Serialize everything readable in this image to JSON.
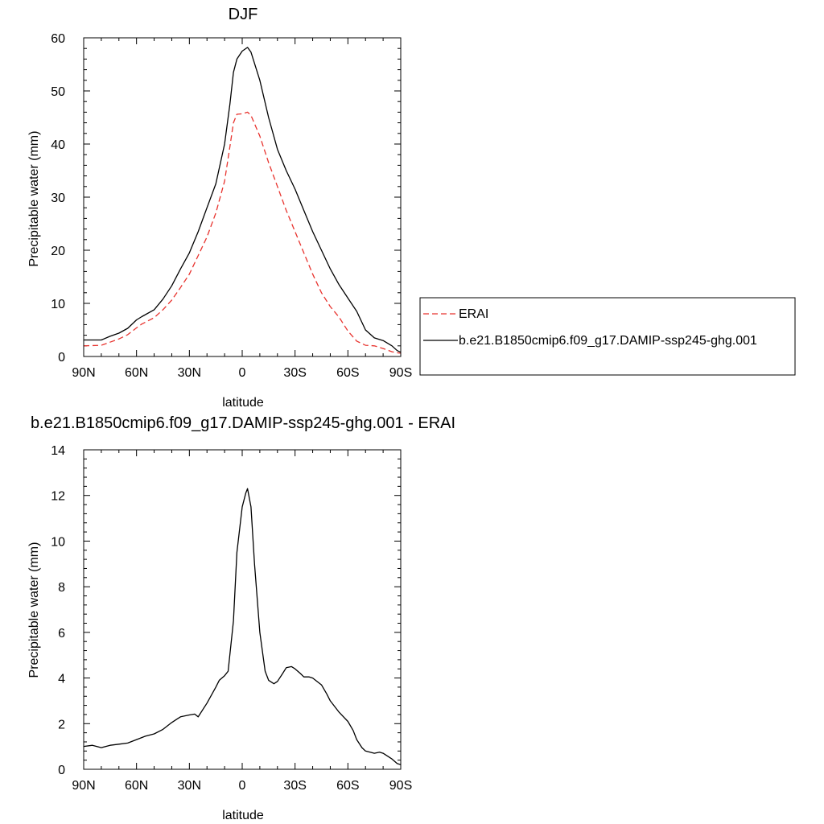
{
  "chart_data": [
    {
      "type": "line",
      "title": "DJF",
      "xlabel": "latitude",
      "ylabel": "Precipitable water (mm)",
      "xlim": [
        -90,
        90
      ],
      "ylim": [
        0,
        60
      ],
      "x_ticks": [
        -90,
        -60,
        -30,
        0,
        30,
        60,
        90
      ],
      "x_tick_labels": [
        "90N",
        "60N",
        "30N",
        "0",
        "30S",
        "60S",
        "90S"
      ],
      "y_ticks": [
        0,
        10,
        20,
        30,
        40,
        50,
        60
      ],
      "y_tick_labels": [
        "0",
        "10",
        "20",
        "30",
        "40",
        "50",
        "60"
      ],
      "grid": false,
      "legend_position": "right",
      "series": [
        {
          "name": "ERAI",
          "color": "#e8332e",
          "dash": "dashed",
          "x": [
            -90,
            -80,
            -75,
            -70,
            -65,
            -60,
            -57,
            -50,
            -45,
            -40,
            -35,
            -30,
            -25,
            -20,
            -15,
            -10,
            -7,
            -5,
            -3,
            0,
            3,
            5,
            10,
            15,
            20,
            25,
            30,
            35,
            40,
            45,
            50,
            55,
            60,
            65,
            70,
            75,
            80,
            85,
            88,
            90
          ],
          "y": [
            2.0,
            2.1,
            2.7,
            3.3,
            4.1,
            5.4,
            6.1,
            7.3,
            8.8,
            10.6,
            13.0,
            15.5,
            19.0,
            22.5,
            27.0,
            33.0,
            39.5,
            44.0,
            45.6,
            45.7,
            46.0,
            45.4,
            41.5,
            36.5,
            32.0,
            27.5,
            23.5,
            19.5,
            15.5,
            12.0,
            9.4,
            7.4,
            4.8,
            2.9,
            2.1,
            2.0,
            1.5,
            0.9,
            0.7,
            0.6
          ]
        },
        {
          "name": "b.e21.B1850cmip6.f09_g17.DAMIP-ssp245-ghg.001",
          "color": "#000000",
          "dash": "solid",
          "x": [
            -90,
            -85,
            -80,
            -75,
            -70,
            -65,
            -60,
            -57,
            -50,
            -45,
            -40,
            -35,
            -30,
            -25,
            -20,
            -15,
            -10,
            -7,
            -5,
            -3,
            0,
            3,
            5,
            10,
            15,
            20,
            25,
            30,
            35,
            40,
            45,
            50,
            55,
            60,
            65,
            70,
            75,
            80,
            85,
            88,
            90
          ],
          "y": [
            3.1,
            3.1,
            3.1,
            3.8,
            4.4,
            5.3,
            6.9,
            7.5,
            8.8,
            10.8,
            13.3,
            16.5,
            19.5,
            23.5,
            28.0,
            32.5,
            40.0,
            47.5,
            53.5,
            56.0,
            57.5,
            58.2,
            57.3,
            52.0,
            45.0,
            39.0,
            35.0,
            31.5,
            27.5,
            23.5,
            20.0,
            16.5,
            13.5,
            11.0,
            8.5,
            5.0,
            3.5,
            3.0,
            2.0,
            1.1,
            0.8
          ]
        }
      ]
    },
    {
      "type": "line",
      "title": "b.e21.B1850cmip6.f09_g17.DAMIP-ssp245-ghg.001 - ERAI",
      "xlabel": "latitude",
      "ylabel": "Precipitable water (mm)",
      "xlim": [
        -90,
        90
      ],
      "ylim": [
        0,
        14
      ],
      "x_ticks": [
        -90,
        -60,
        -30,
        0,
        30,
        60,
        90
      ],
      "x_tick_labels": [
        "90N",
        "60N",
        "30N",
        "0",
        "30S",
        "60S",
        "90S"
      ],
      "y_ticks": [
        0,
        2,
        4,
        6,
        8,
        10,
        12,
        14
      ],
      "y_tick_labels": [
        "0",
        "2",
        "4",
        "6",
        "8",
        "10",
        "12",
        "14"
      ],
      "grid": false,
      "series": [
        {
          "color": "#000000",
          "dash": "solid",
          "x": [
            -90,
            -85,
            -80,
            -75,
            -70,
            -65,
            -60,
            -55,
            -50,
            -45,
            -40,
            -37,
            -35,
            -30,
            -27,
            -25,
            -20,
            -15,
            -13,
            -10,
            -8,
            -5,
            -3,
            0,
            2,
            3,
            5,
            7,
            10,
            13,
            15,
            18,
            20,
            23,
            25,
            28,
            30,
            33,
            35,
            38,
            40,
            45,
            48,
            50,
            55,
            60,
            63,
            65,
            68,
            70,
            75,
            78,
            80,
            85,
            88,
            90
          ],
          "y": [
            1.0,
            1.05,
            0.95,
            1.05,
            1.1,
            1.15,
            1.3,
            1.45,
            1.55,
            1.75,
            2.05,
            2.2,
            2.3,
            2.38,
            2.42,
            2.3,
            2.9,
            3.6,
            3.9,
            4.1,
            4.3,
            6.5,
            9.5,
            11.5,
            12.1,
            12.3,
            11.5,
            9.0,
            6.0,
            4.3,
            3.9,
            3.75,
            3.85,
            4.2,
            4.45,
            4.5,
            4.4,
            4.2,
            4.05,
            4.05,
            4.0,
            3.7,
            3.3,
            3.0,
            2.5,
            2.1,
            1.7,
            1.3,
            0.95,
            0.8,
            0.7,
            0.75,
            0.7,
            0.45,
            0.25,
            0.2
          ]
        }
      ]
    }
  ]
}
